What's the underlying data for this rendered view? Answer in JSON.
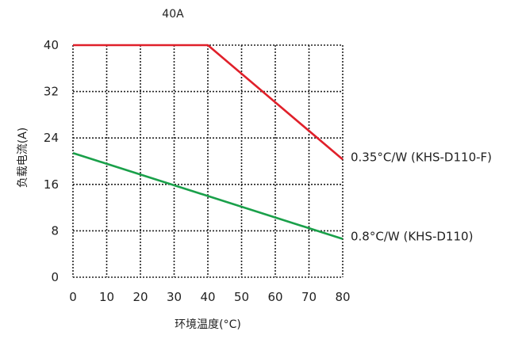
{
  "chart_data": {
    "type": "line",
    "title": "40A",
    "xlabel": "环境温度(°C)",
    "ylabel": "负载电流(A)",
    "xlim": [
      0,
      80
    ],
    "ylim": [
      0,
      40
    ],
    "xticks": [
      "0",
      "10",
      "20",
      "30",
      "40",
      "50",
      "60",
      "70",
      "80"
    ],
    "yticks": [
      "0",
      "8",
      "16",
      "24",
      "32",
      "40"
    ],
    "grid": true,
    "series": [
      {
        "name": "0.35°C/W (KHS-D110-F)",
        "color": "#e0202a",
        "x": [
          0,
          40,
          80
        ],
        "y": [
          40,
          40,
          20.3
        ]
      },
      {
        "name": "0.8°C/W (KHS-D110)",
        "color": "#1aa04a",
        "x": [
          0,
          80
        ],
        "y": [
          21.4,
          6.6
        ]
      }
    ]
  }
}
